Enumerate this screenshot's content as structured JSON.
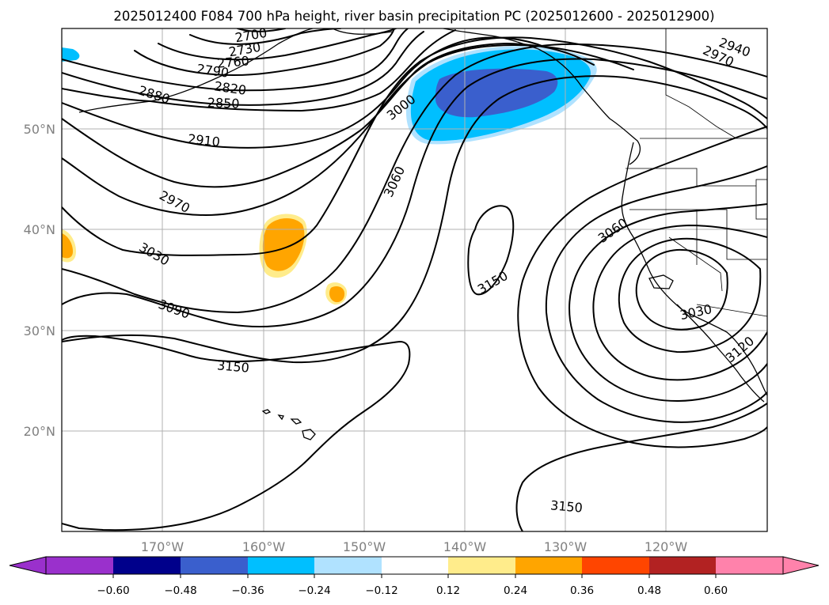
{
  "title": "2025012400 F084 700 hPa height, river basin precipitation PC (2025012600 - 2025012900)",
  "map": {
    "lon_labels": [
      "170°W",
      "160°W",
      "150°W",
      "140°W",
      "130°W",
      "120°W"
    ],
    "lat_labels": [
      "50°N",
      "40°N",
      "30°N",
      "20°N"
    ],
    "contour_labels": [
      "2700",
      "2730",
      "2760",
      "2790",
      "2820",
      "2850",
      "2880",
      "2910",
      "2970",
      "3000",
      "3030",
      "3060",
      "3090",
      "3150",
      "3150",
      "3060",
      "3030",
      "3120",
      "2940",
      "2970",
      "3150"
    ]
  },
  "colorbar": {
    "tick_labels": [
      "−0.60",
      "−0.48",
      "−0.36",
      "−0.24",
      "−0.12",
      "0.12",
      "0.24",
      "0.36",
      "0.48",
      "0.60"
    ],
    "colors": [
      "#9a30cc",
      "#00008b",
      "#3a5fcd",
      "#00bfff",
      "#b0e2ff",
      "#ffffff",
      "#ffec8b",
      "#ffa500",
      "#ff4500",
      "#b22222",
      "#ff82ab"
    ]
  }
}
